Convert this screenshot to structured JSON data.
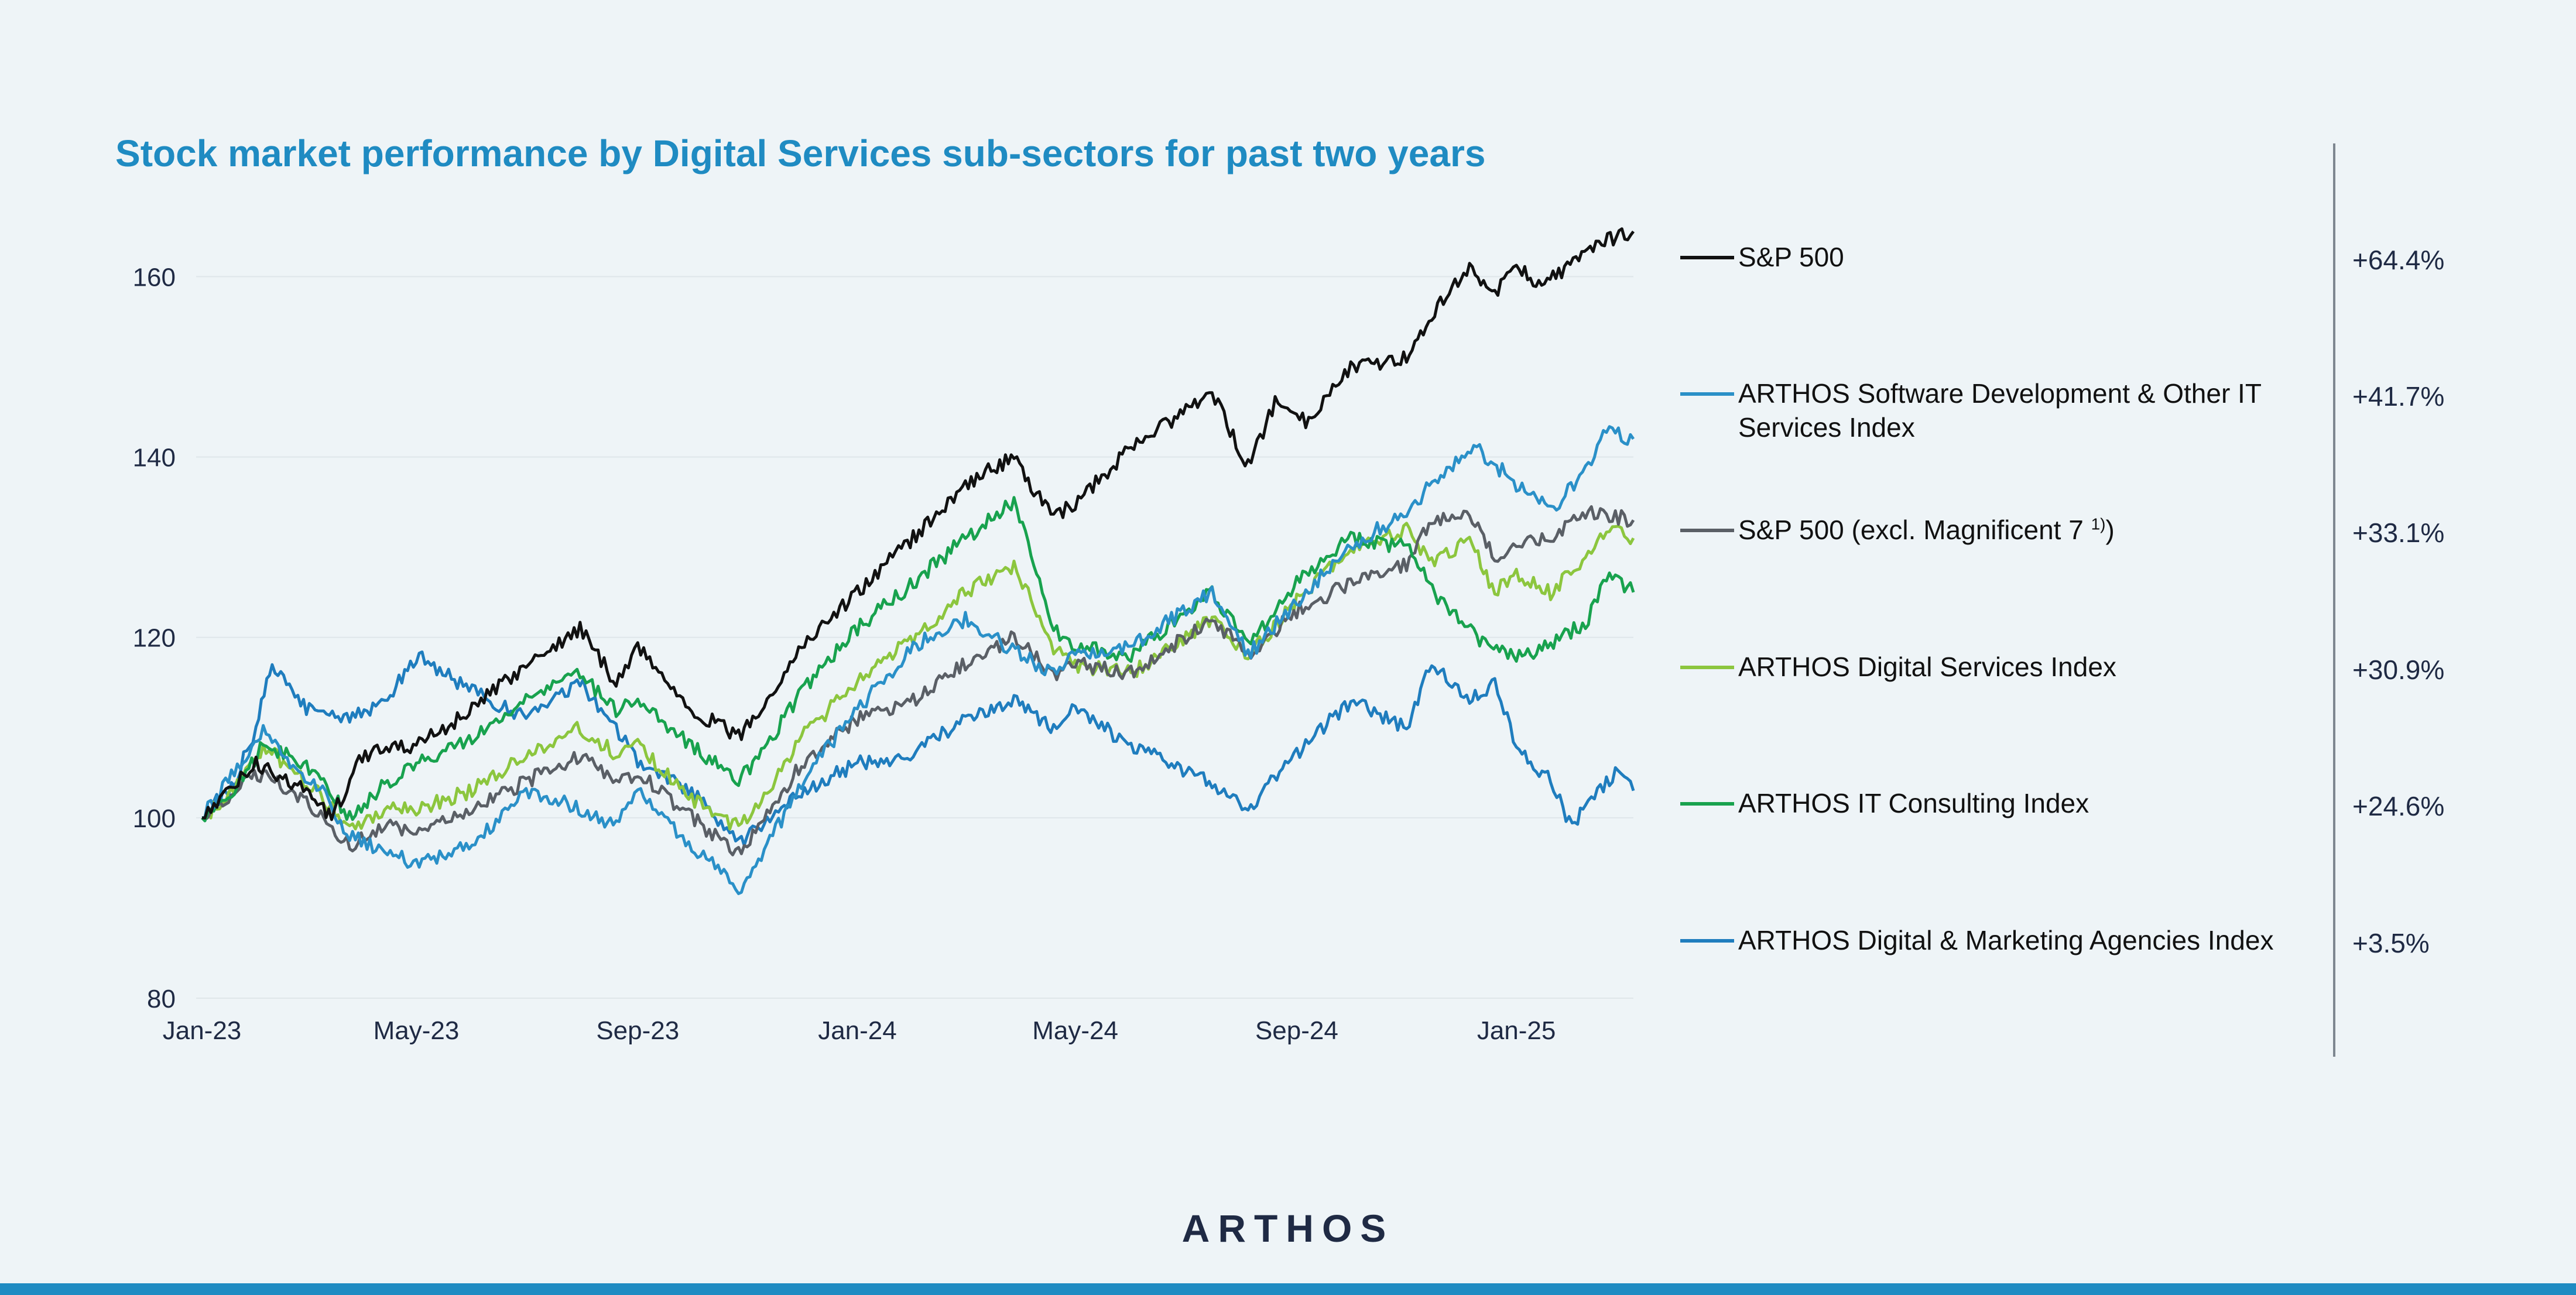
{
  "title": "Stock market performance by Digital Services sub-sectors for past two years",
  "logo_text": "ARTHOS",
  "chart_data": {
    "type": "line",
    "title": "Stock market performance by Digital Services sub-sectors for past two years",
    "ylim": [
      80,
      166
    ],
    "yticks": [
      80,
      100,
      120,
      140,
      160
    ],
    "x_range": [
      "2023-01-02",
      "2025-03-07"
    ],
    "xticks": [
      {
        "date": "2023-01-02",
        "label": "Jan-23"
      },
      {
        "date": "2023-05-01",
        "label": "May-23"
      },
      {
        "date": "2023-09-01",
        "label": "Sep-23"
      },
      {
        "date": "2024-01-01",
        "label": "Jan-24"
      },
      {
        "date": "2024-05-01",
        "label": "May-24"
      },
      {
        "date": "2024-09-01",
        "label": "Sep-24"
      },
      {
        "date": "2025-01-01",
        "label": "Jan-25"
      }
    ],
    "grid": true,
    "legend_position": "right",
    "series": [
      {
        "name": "S&P 500",
        "change": "+64.4%",
        "color": "#111111",
        "points": [
          [
            "2023-01-02",
            100
          ],
          [
            "2023-02-01",
            106
          ],
          [
            "2023-03-01",
            103
          ],
          [
            "2023-03-15",
            100
          ],
          [
            "2023-04-01",
            107
          ],
          [
            "2023-05-01",
            108
          ],
          [
            "2023-06-01",
            112
          ],
          [
            "2023-07-01",
            117
          ],
          [
            "2023-07-31",
            121
          ],
          [
            "2023-08-20",
            115
          ],
          [
            "2023-09-01",
            119
          ],
          [
            "2023-10-01",
            112
          ],
          [
            "2023-10-27",
            109
          ],
          [
            "2023-11-15",
            114
          ],
          [
            "2023-12-01",
            119
          ],
          [
            "2024-01-01",
            125
          ],
          [
            "2024-02-01",
            131
          ],
          [
            "2024-03-01",
            137
          ],
          [
            "2024-03-28",
            140
          ],
          [
            "2024-04-19",
            133
          ],
          [
            "2024-05-01",
            135
          ],
          [
            "2024-06-01",
            141
          ],
          [
            "2024-07-16",
            147
          ],
          [
            "2024-08-05",
            139
          ],
          [
            "2024-08-20",
            146
          ],
          [
            "2024-09-06",
            144
          ],
          [
            "2024-10-01",
            150
          ],
          [
            "2024-11-01",
            151
          ],
          [
            "2024-11-15",
            156
          ],
          [
            "2024-12-06",
            161
          ],
          [
            "2024-12-20",
            158
          ],
          [
            "2025-01-01",
            161
          ],
          [
            "2025-01-15",
            159
          ],
          [
            "2025-02-19",
            164
          ],
          [
            "2025-03-07",
            165
          ]
        ]
      },
      {
        "name": "ARTHOS Software Development & Other IT Services Index",
        "change": "+41.7%",
        "color": "#2a90c8",
        "points": [
          [
            "2023-01-02",
            100
          ],
          [
            "2023-01-20",
            105
          ],
          [
            "2023-02-05",
            110
          ],
          [
            "2023-02-20",
            106
          ],
          [
            "2023-03-10",
            103
          ],
          [
            "2023-03-25",
            98
          ],
          [
            "2023-04-15",
            96
          ],
          [
            "2023-05-01",
            95
          ],
          [
            "2023-06-01",
            97
          ],
          [
            "2023-07-01",
            103
          ],
          [
            "2023-08-01",
            101
          ],
          [
            "2023-08-20",
            99
          ],
          [
            "2023-09-01",
            103
          ],
          [
            "2023-10-01",
            97
          ],
          [
            "2023-10-27",
            92
          ],
          [
            "2023-11-15",
            98
          ],
          [
            "2023-12-01",
            104
          ],
          [
            "2024-01-01",
            112
          ],
          [
            "2024-02-01",
            119
          ],
          [
            "2024-03-01",
            122
          ],
          [
            "2024-04-01",
            118
          ],
          [
            "2024-04-19",
            116
          ],
          [
            "2024-05-01",
            118
          ],
          [
            "2024-06-01",
            119
          ],
          [
            "2024-07-16",
            125
          ],
          [
            "2024-08-05",
            118
          ],
          [
            "2024-09-01",
            124
          ],
          [
            "2024-10-01",
            130
          ],
          [
            "2024-11-01",
            134
          ],
          [
            "2024-11-20",
            138
          ],
          [
            "2024-12-10",
            141
          ],
          [
            "2025-01-01",
            137
          ],
          [
            "2025-01-20",
            134
          ],
          [
            "2025-02-10",
            139
          ],
          [
            "2025-02-20",
            143
          ],
          [
            "2025-03-07",
            142
          ]
        ]
      },
      {
        "name": "S&P 500 (excl. Magnificent 7",
        "name_sup": "1)",
        "name_suffix": ")",
        "change": "+33.1%",
        "color": "#5a5f66",
        "points": [
          [
            "2023-01-02",
            100
          ],
          [
            "2023-01-20",
            103
          ],
          [
            "2023-02-05",
            105
          ],
          [
            "2023-03-01",
            102
          ],
          [
            "2023-03-25",
            97
          ],
          [
            "2023-04-15",
            99
          ],
          [
            "2023-05-01",
            98
          ],
          [
            "2023-06-01",
            101
          ],
          [
            "2023-07-01",
            104
          ],
          [
            "2023-07-31",
            107
          ],
          [
            "2023-08-20",
            104
          ],
          [
            "2023-09-01",
            105
          ],
          [
            "2023-10-01",
            100
          ],
          [
            "2023-10-27",
            96
          ],
          [
            "2023-11-15",
            101
          ],
          [
            "2023-12-01",
            106
          ],
          [
            "2024-01-01",
            111
          ],
          [
            "2024-02-01",
            113
          ],
          [
            "2024-03-01",
            117
          ],
          [
            "2024-03-28",
            120
          ],
          [
            "2024-04-19",
            116
          ],
          [
            "2024-05-01",
            117
          ],
          [
            "2024-06-01",
            116
          ],
          [
            "2024-07-16",
            122
          ],
          [
            "2024-08-05",
            118
          ],
          [
            "2024-09-01",
            123
          ],
          [
            "2024-10-01",
            126
          ],
          [
            "2024-11-01",
            128
          ],
          [
            "2024-11-15",
            133
          ],
          [
            "2024-12-06",
            134
          ],
          [
            "2024-12-20",
            129
          ],
          [
            "2025-01-01",
            130
          ],
          [
            "2025-01-20",
            131
          ],
          [
            "2025-02-10",
            134
          ],
          [
            "2025-03-07",
            133
          ]
        ]
      },
      {
        "name": "ARTHOS Digital Services Index",
        "change": "+30.9%",
        "color": "#8cc63e",
        "points": [
          [
            "2023-01-02",
            100
          ],
          [
            "2023-01-20",
            103
          ],
          [
            "2023-02-05",
            108
          ],
          [
            "2023-03-01",
            104
          ],
          [
            "2023-03-25",
            99
          ],
          [
            "2023-04-15",
            101
          ],
          [
            "2023-05-01",
            101
          ],
          [
            "2023-06-01",
            103
          ],
          [
            "2023-07-01",
            107
          ],
          [
            "2023-07-31",
            110
          ],
          [
            "2023-08-20",
            107
          ],
          [
            "2023-09-01",
            108
          ],
          [
            "2023-10-01",
            102
          ],
          [
            "2023-10-27",
            99
          ],
          [
            "2023-11-15",
            104
          ],
          [
            "2023-12-01",
            109
          ],
          [
            "2024-01-01",
            115
          ],
          [
            "2024-02-01",
            120
          ],
          [
            "2024-03-01",
            125
          ],
          [
            "2024-03-28",
            128
          ],
          [
            "2024-04-19",
            119
          ],
          [
            "2024-05-01",
            117
          ],
          [
            "2024-06-01",
            116
          ],
          [
            "2024-07-16",
            122
          ],
          [
            "2024-08-05",
            118
          ],
          [
            "2024-09-01",
            124
          ],
          [
            "2024-10-01",
            130
          ],
          [
            "2024-11-01",
            132
          ],
          [
            "2024-11-15",
            128
          ],
          [
            "2024-12-06",
            131
          ],
          [
            "2024-12-20",
            125
          ],
          [
            "2025-01-01",
            127
          ],
          [
            "2025-01-20",
            125
          ],
          [
            "2025-02-10",
            129
          ],
          [
            "2025-02-20",
            132
          ],
          [
            "2025-03-07",
            131
          ]
        ]
      },
      {
        "name": "ARTHOS IT Consulting Index",
        "change": "+24.6%",
        "color": "#18a24e",
        "points": [
          [
            "2023-01-02",
            100
          ],
          [
            "2023-01-20",
            103
          ],
          [
            "2023-02-05",
            108
          ],
          [
            "2023-03-01",
            106
          ],
          [
            "2023-03-25",
            100
          ],
          [
            "2023-04-15",
            104
          ],
          [
            "2023-05-01",
            106
          ],
          [
            "2023-06-01",
            109
          ],
          [
            "2023-07-01",
            113
          ],
          [
            "2023-07-31",
            116
          ],
          [
            "2023-08-20",
            112
          ],
          [
            "2023-09-01",
            113
          ],
          [
            "2023-10-01",
            108
          ],
          [
            "2023-10-27",
            104
          ],
          [
            "2023-11-15",
            109
          ],
          [
            "2023-12-01",
            114
          ],
          [
            "2024-01-01",
            121
          ],
          [
            "2024-02-01",
            126
          ],
          [
            "2024-03-01",
            131
          ],
          [
            "2024-03-28",
            135
          ],
          [
            "2024-04-19",
            121
          ],
          [
            "2024-05-01",
            119
          ],
          [
            "2024-06-01",
            118
          ],
          [
            "2024-07-16",
            125
          ],
          [
            "2024-08-05",
            119
          ],
          [
            "2024-09-01",
            126
          ],
          [
            "2024-10-01",
            131
          ],
          [
            "2024-11-01",
            130
          ],
          [
            "2024-11-20",
            124
          ],
          [
            "2024-12-10",
            120
          ],
          [
            "2025-01-01",
            118
          ],
          [
            "2025-01-20",
            119
          ],
          [
            "2025-02-10",
            122
          ],
          [
            "2025-02-20",
            127
          ],
          [
            "2025-03-07",
            125
          ]
        ]
      },
      {
        "name": "ARTHOS Digital & Marketing Agencies Index",
        "change": "+3.5%",
        "color": "#1f7dbe",
        "points": [
          [
            "2023-01-02",
            100
          ],
          [
            "2023-01-20",
            104
          ],
          [
            "2023-02-01",
            110
          ],
          [
            "2023-02-10",
            117
          ],
          [
            "2023-03-01",
            112
          ],
          [
            "2023-03-25",
            111
          ],
          [
            "2023-04-15",
            113
          ],
          [
            "2023-05-01",
            118
          ],
          [
            "2023-06-01",
            114
          ],
          [
            "2023-07-01",
            111
          ],
          [
            "2023-07-31",
            115
          ],
          [
            "2023-08-20",
            110
          ],
          [
            "2023-09-01",
            106
          ],
          [
            "2023-10-01",
            103
          ],
          [
            "2023-10-27",
            97
          ],
          [
            "2023-11-15",
            100
          ],
          [
            "2023-12-01",
            103
          ],
          [
            "2024-01-01",
            106
          ],
          [
            "2024-02-01",
            107
          ],
          [
            "2024-03-01",
            111
          ],
          [
            "2024-03-28",
            113
          ],
          [
            "2024-04-19",
            110
          ],
          [
            "2024-05-01",
            112
          ],
          [
            "2024-06-01",
            108
          ],
          [
            "2024-07-16",
            104
          ],
          [
            "2024-08-05",
            101
          ],
          [
            "2024-09-01",
            107
          ],
          [
            "2024-10-01",
            113
          ],
          [
            "2024-11-01",
            110
          ],
          [
            "2024-11-15",
            117
          ],
          [
            "2024-12-06",
            113
          ],
          [
            "2024-12-20",
            115
          ],
          [
            "2025-01-01",
            108
          ],
          [
            "2025-01-20",
            104
          ],
          [
            "2025-02-01",
            99
          ],
          [
            "2025-02-10",
            102
          ],
          [
            "2025-02-25",
            105
          ],
          [
            "2025-03-07",
            103
          ]
        ]
      }
    ]
  }
}
